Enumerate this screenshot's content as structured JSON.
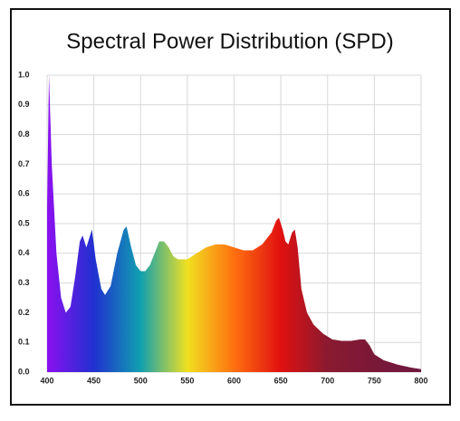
{
  "chart_data": {
    "type": "area",
    "title": "Spectral Power Distribution (SPD)",
    "x": [
      400,
      402,
      405,
      410,
      415,
      420,
      425,
      430,
      435,
      438,
      442,
      448,
      452,
      458,
      462,
      468,
      475,
      482,
      485,
      490,
      495,
      500,
      505,
      510,
      515,
      520,
      525,
      530,
      535,
      540,
      550,
      560,
      570,
      580,
      590,
      600,
      610,
      620,
      630,
      640,
      645,
      648,
      652,
      655,
      658,
      662,
      665,
      668,
      672,
      678,
      685,
      695,
      705,
      715,
      725,
      735,
      740,
      745,
      750,
      760,
      775,
      790,
      800
    ],
    "values": [
      0.55,
      1.0,
      0.7,
      0.4,
      0.25,
      0.2,
      0.22,
      0.32,
      0.44,
      0.46,
      0.42,
      0.48,
      0.38,
      0.28,
      0.26,
      0.29,
      0.4,
      0.48,
      0.49,
      0.42,
      0.36,
      0.34,
      0.34,
      0.36,
      0.4,
      0.44,
      0.44,
      0.42,
      0.39,
      0.38,
      0.38,
      0.4,
      0.42,
      0.43,
      0.43,
      0.42,
      0.41,
      0.41,
      0.43,
      0.47,
      0.51,
      0.52,
      0.48,
      0.44,
      0.43,
      0.47,
      0.48,
      0.42,
      0.28,
      0.2,
      0.16,
      0.13,
      0.11,
      0.105,
      0.105,
      0.11,
      0.11,
      0.09,
      0.06,
      0.04,
      0.025,
      0.015,
      0.01
    ],
    "gradient": [
      "#8b10f0",
      "#2030d0",
      "#10a0b0",
      "#f0e020",
      "#ff7010",
      "#e01010",
      "#8a1a30",
      "#7a1838",
      "#6e1840"
    ],
    "xlim": [
      400,
      800
    ],
    "ylim": [
      0,
      1
    ],
    "xticks": [
      400,
      450,
      500,
      550,
      600,
      650,
      700,
      750,
      800
    ],
    "yticks": [
      {
        "value": 0,
        "label": "0.0"
      },
      0.1,
      0.2,
      0.3,
      0.4,
      0.5,
      0.6,
      0.7,
      0.8,
      0.9,
      {
        "value": 1,
        "label": "1.0"
      }
    ],
    "grid": true
  }
}
